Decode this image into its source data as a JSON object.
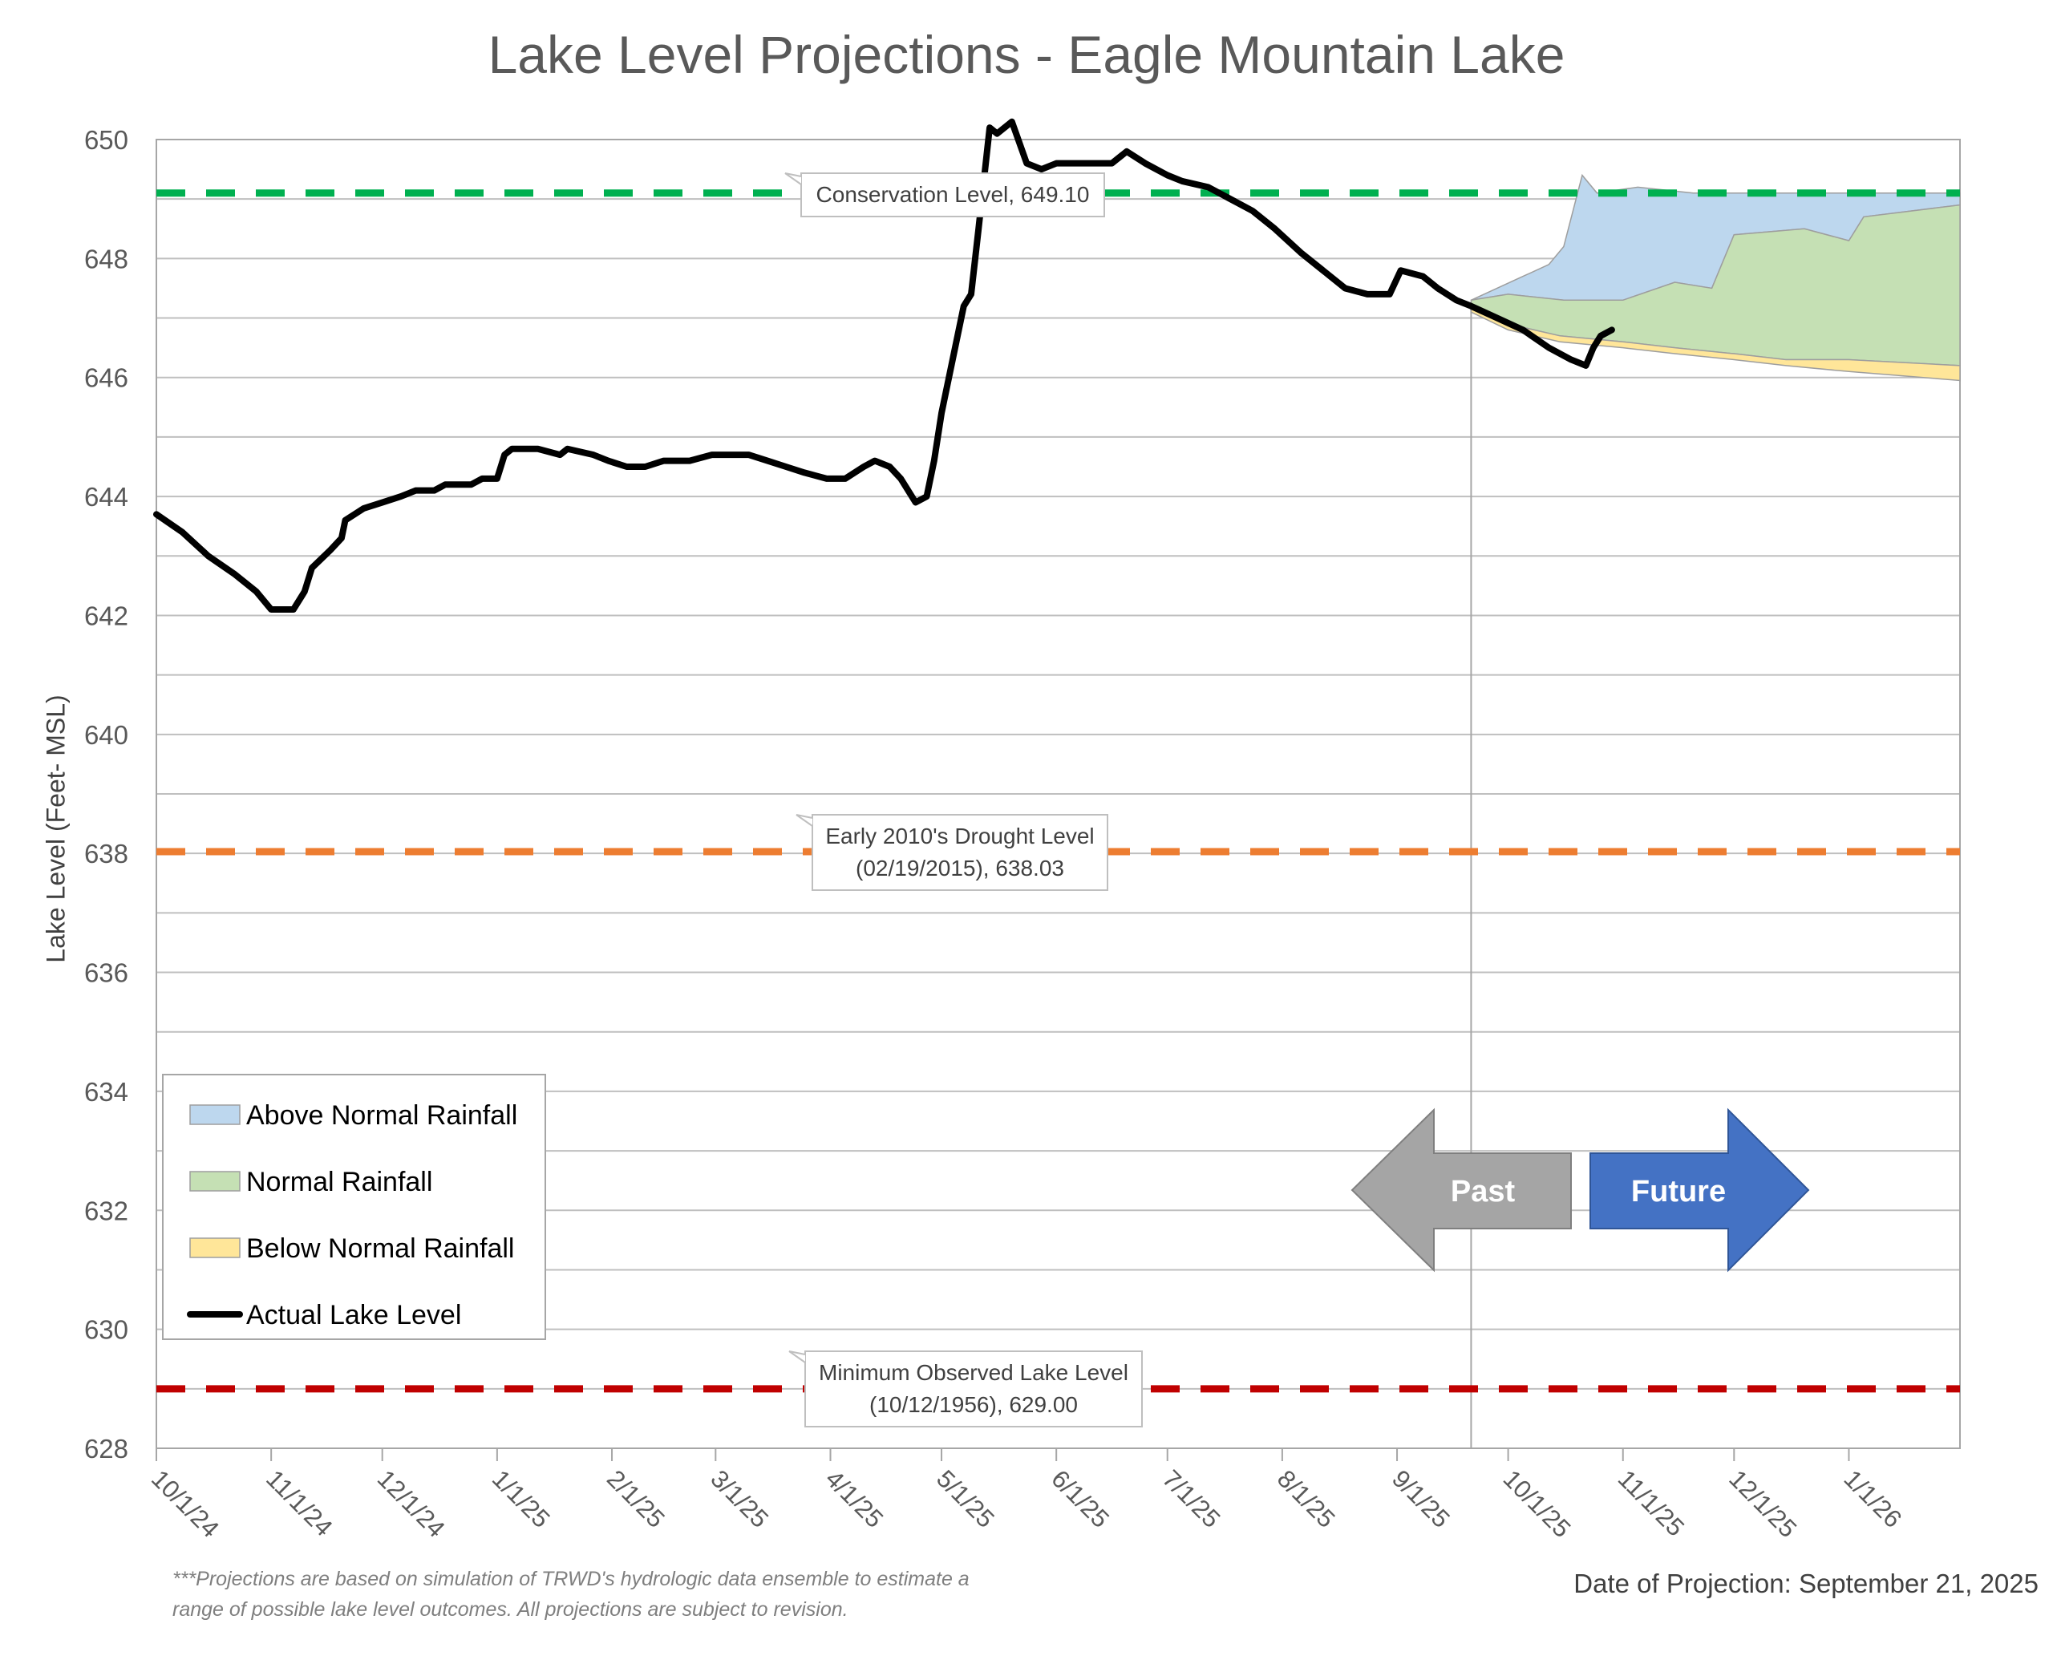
{
  "chart_data": {
    "type": "line",
    "title": "Lake Level Projections - Eagle Mountain Lake",
    "ylabel": "Lake Level (Feet- MSL)",
    "xlabel": "",
    "ylim": [
      628,
      650
    ],
    "xlim": [
      "2024-10-01",
      "2026-01-31"
    ],
    "y_ticks": [
      "628",
      "630",
      "632",
      "634",
      "636",
      "638",
      "640",
      "642",
      "644",
      "646",
      "648",
      "650"
    ],
    "x_ticks": [
      "10/1/24",
      "11/1/24",
      "12/1/24",
      "1/1/25",
      "2/1/25",
      "3/1/25",
      "4/1/25",
      "5/1/25",
      "6/1/25",
      "7/1/25",
      "8/1/25",
      "9/1/25",
      "10/1/25",
      "11/1/25",
      "12/1/25",
      "1/1/26"
    ],
    "x_tick_dates": [
      "2024-10-01",
      "2024-11-01",
      "2024-12-01",
      "2025-01-01",
      "2025-02-01",
      "2025-03-01",
      "2025-04-01",
      "2025-05-01",
      "2025-06-01",
      "2025-07-01",
      "2025-08-01",
      "2025-09-01",
      "2025-10-01",
      "2025-11-01",
      "2025-12-01",
      "2026-01-01"
    ],
    "grid": true,
    "projection_date_marker": "2025-09-21",
    "reference_lines": [
      {
        "name": "conservation",
        "value": 649.1,
        "color": "#00b050",
        "label": "Conservation Level, 649.10"
      },
      {
        "name": "drought",
        "value": 638.03,
        "color": "#ed7d31",
        "label_line1": "Early 2010's Drought Level",
        "label_line2": "(02/19/2015), 638.03"
      },
      {
        "name": "minimum",
        "value": 629.0,
        "color": "#c00000",
        "label_line1": "Minimum Observed Lake Level",
        "label_line2": "(10/12/1956), 629.00"
      }
    ],
    "actual_lake_level": {
      "name": "Actual Lake Level",
      "color": "#000000",
      "points": [
        [
          "2024-10-01",
          643.7
        ],
        [
          "2024-10-08",
          643.4
        ],
        [
          "2024-10-15",
          643.0
        ],
        [
          "2024-10-22",
          642.7
        ],
        [
          "2024-10-28",
          642.4
        ],
        [
          "2024-11-01",
          642.1
        ],
        [
          "2024-11-07",
          642.1
        ],
        [
          "2024-11-10",
          642.4
        ],
        [
          "2024-11-12",
          642.8
        ],
        [
          "2024-11-17",
          643.1
        ],
        [
          "2024-11-20",
          643.3
        ],
        [
          "2024-11-21",
          643.6
        ],
        [
          "2024-11-26",
          643.8
        ],
        [
          "2024-12-01",
          643.9
        ],
        [
          "2024-12-06",
          644.0
        ],
        [
          "2024-12-10",
          644.1
        ],
        [
          "2024-12-15",
          644.1
        ],
        [
          "2024-12-18",
          644.2
        ],
        [
          "2024-12-25",
          644.2
        ],
        [
          "2024-12-28",
          644.3
        ],
        [
          "2025-01-01",
          644.3
        ],
        [
          "2025-01-03",
          644.7
        ],
        [
          "2025-01-05",
          644.8
        ],
        [
          "2025-01-12",
          644.8
        ],
        [
          "2025-01-18",
          644.7
        ],
        [
          "2025-01-20",
          644.8
        ],
        [
          "2025-01-27",
          644.7
        ],
        [
          "2025-01-31",
          644.6
        ],
        [
          "2025-02-05",
          644.5
        ],
        [
          "2025-02-10",
          644.5
        ],
        [
          "2025-02-15",
          644.6
        ],
        [
          "2025-02-22",
          644.6
        ],
        [
          "2025-02-28",
          644.7
        ],
        [
          "2025-03-05",
          644.7
        ],
        [
          "2025-03-10",
          644.7
        ],
        [
          "2025-03-15",
          644.6
        ],
        [
          "2025-03-20",
          644.5
        ],
        [
          "2025-03-25",
          644.4
        ],
        [
          "2025-03-31",
          644.3
        ],
        [
          "2025-04-05",
          644.3
        ],
        [
          "2025-04-10",
          644.5
        ],
        [
          "2025-04-13",
          644.6
        ],
        [
          "2025-04-17",
          644.5
        ],
        [
          "2025-04-20",
          644.3
        ],
        [
          "2025-04-24",
          643.9
        ],
        [
          "2025-04-27",
          644.0
        ],
        [
          "2025-04-29",
          644.6
        ],
        [
          "2025-05-01",
          645.4
        ],
        [
          "2025-05-05",
          646.6
        ],
        [
          "2025-05-07",
          647.2
        ],
        [
          "2025-05-09",
          647.4
        ],
        [
          "2025-05-11",
          648.5
        ],
        [
          "2025-05-14",
          650.2
        ],
        [
          "2025-05-16",
          650.1
        ],
        [
          "2025-05-20",
          650.3
        ],
        [
          "2025-05-24",
          649.6
        ],
        [
          "2025-05-28",
          649.5
        ],
        [
          "2025-06-01",
          649.6
        ],
        [
          "2025-06-06",
          649.6
        ],
        [
          "2025-06-12",
          649.6
        ],
        [
          "2025-06-16",
          649.6
        ],
        [
          "2025-06-20",
          649.8
        ],
        [
          "2025-06-25",
          649.6
        ],
        [
          "2025-07-01",
          649.4
        ],
        [
          "2025-07-05",
          649.3
        ],
        [
          "2025-07-12",
          649.2
        ],
        [
          "2025-07-18",
          649.0
        ],
        [
          "2025-07-24",
          648.8
        ],
        [
          "2025-07-30",
          648.5
        ],
        [
          "2025-08-06",
          648.1
        ],
        [
          "2025-08-12",
          647.8
        ],
        [
          "2025-08-18",
          647.5
        ],
        [
          "2025-08-24",
          647.4
        ],
        [
          "2025-08-30",
          647.4
        ],
        [
          "2025-09-02",
          647.8
        ],
        [
          "2025-09-08",
          647.7
        ],
        [
          "2025-09-12",
          647.5
        ],
        [
          "2025-09-17",
          647.3
        ],
        [
          "2025-09-21",
          647.2
        ],
        [
          "2025-09-28",
          647.0
        ],
        [
          "2025-10-05",
          646.8
        ],
        [
          "2025-10-12",
          646.5
        ],
        [
          "2025-10-18",
          646.3
        ],
        [
          "2025-10-22",
          646.2
        ],
        [
          "2025-10-24",
          646.5
        ],
        [
          "2025-10-26",
          646.7
        ],
        [
          "2025-10-29",
          646.8
        ]
      ]
    },
    "projection_bands": [
      {
        "name": "Above Normal Rainfall",
        "fill": "#bdd7ee",
        "stroke": "#9e9e9e",
        "upper": [
          [
            "2025-09-21",
            647.3
          ],
          [
            "2025-09-28",
            647.5
          ],
          [
            "2025-10-05",
            647.7
          ],
          [
            "2025-10-12",
            647.9
          ],
          [
            "2025-10-16",
            648.2
          ],
          [
            "2025-10-21",
            649.4
          ],
          [
            "2025-10-25",
            649.1
          ],
          [
            "2025-11-05",
            649.2
          ],
          [
            "2025-11-20",
            649.1
          ],
          [
            "2025-12-10",
            649.1
          ],
          [
            "2026-01-01",
            649.1
          ],
          [
            "2026-01-31",
            649.1
          ]
        ],
        "lower": [
          [
            "2025-09-21",
            647.3
          ],
          [
            "2025-10-01",
            647.4
          ],
          [
            "2025-10-16",
            647.3
          ],
          [
            "2025-11-01",
            647.3
          ],
          [
            "2025-11-15",
            647.6
          ],
          [
            "2025-11-25",
            647.5
          ],
          [
            "2025-12-01",
            648.4
          ],
          [
            "2025-12-20",
            648.5
          ],
          [
            "2026-01-01",
            648.3
          ],
          [
            "2026-01-05",
            648.7
          ],
          [
            "2026-01-31",
            648.9
          ]
        ]
      },
      {
        "name": "Normal Rainfall",
        "fill": "#c5e0b4",
        "stroke": "#9e9e9e",
        "upper": [
          [
            "2025-09-21",
            647.3
          ],
          [
            "2025-10-01",
            647.4
          ],
          [
            "2025-10-16",
            647.3
          ],
          [
            "2025-11-01",
            647.3
          ],
          [
            "2025-11-15",
            647.6
          ],
          [
            "2025-11-25",
            647.5
          ],
          [
            "2025-12-01",
            648.4
          ],
          [
            "2025-12-20",
            648.5
          ],
          [
            "2026-01-01",
            648.3
          ],
          [
            "2026-01-05",
            648.7
          ],
          [
            "2026-01-31",
            648.9
          ]
        ],
        "lower": [
          [
            "2025-09-21",
            647.2
          ],
          [
            "2025-10-01",
            646.9
          ],
          [
            "2025-10-15",
            646.7
          ],
          [
            "2025-11-01",
            646.6
          ],
          [
            "2025-11-15",
            646.5
          ],
          [
            "2025-12-01",
            646.4
          ],
          [
            "2025-12-15",
            646.3
          ],
          [
            "2026-01-01",
            646.3
          ],
          [
            "2026-01-31",
            646.2
          ]
        ]
      },
      {
        "name": "Below Normal Rainfall",
        "fill": "#ffe699",
        "stroke": "#9e9e9e",
        "upper": [
          [
            "2025-09-21",
            647.2
          ],
          [
            "2025-10-01",
            646.9
          ],
          [
            "2025-10-15",
            646.7
          ],
          [
            "2025-11-01",
            646.6
          ],
          [
            "2025-11-15",
            646.5
          ],
          [
            "2025-12-01",
            646.4
          ],
          [
            "2025-12-15",
            646.3
          ],
          [
            "2026-01-01",
            646.3
          ],
          [
            "2026-01-31",
            646.2
          ]
        ],
        "lower": [
          [
            "2025-09-21",
            647.1
          ],
          [
            "2025-10-01",
            646.8
          ],
          [
            "2025-10-15",
            646.6
          ],
          [
            "2025-11-01",
            646.5
          ],
          [
            "2025-11-15",
            646.4
          ],
          [
            "2025-12-01",
            646.3
          ],
          [
            "2025-12-15",
            646.2
          ],
          [
            "2026-01-01",
            646.1
          ],
          [
            "2026-01-31",
            645.95
          ]
        ]
      }
    ],
    "legend": {
      "placement": "bottom-left",
      "entries": [
        "Above Normal Rainfall",
        "Normal Rainfall",
        "Below Normal Rainfall",
        "Actual Lake Level"
      ]
    },
    "arrows": {
      "past_label": "Past",
      "future_label": "Future",
      "past_color": "#a5a5a5",
      "future_color": "#4472c4"
    }
  },
  "footnote_line1": "***Projections are based on simulation of TRWD's hydrologic data ensemble to estimate a",
  "footnote_line2": "range of possible lake level outcomes.  All projections are subject to revision.",
  "projection_date_text": "Date of Projection: September 21, 2025"
}
